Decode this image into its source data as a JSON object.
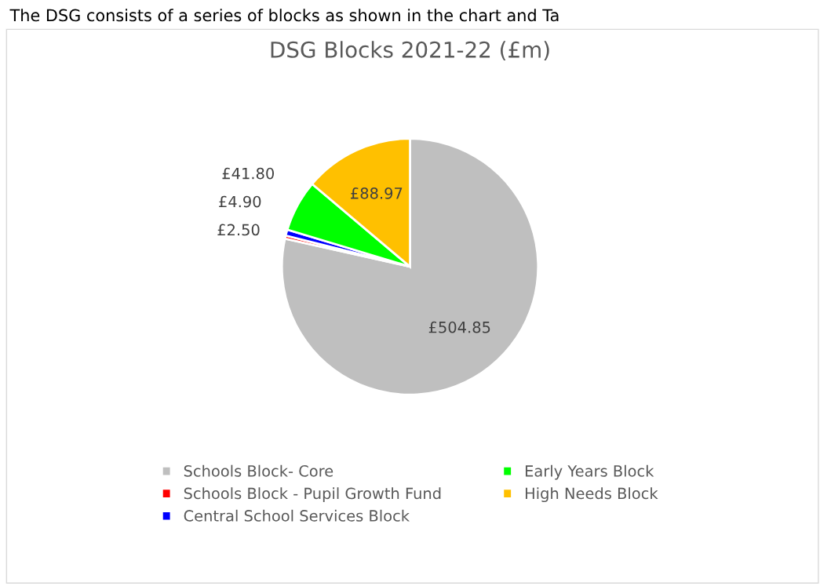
{
  "chart_data": {
    "type": "pie",
    "title": "DSG Blocks 2021-22 (£m)",
    "categories": [
      "Schools Block- Core",
      "Schools Block - Pupil Growth Fund",
      "Central School Services Block",
      "Early Years Block",
      "High Needs Block"
    ],
    "values": [
      504.85,
      2.5,
      4.9,
      41.8,
      88.97
    ],
    "colors": [
      "#bfbfbf",
      "#ff0000",
      "#0000ff",
      "#00ff00",
      "#ffc000"
    ],
    "value_labels": [
      "£504.85",
      "£2.50",
      "£4.90",
      "£41.80",
      "£88.97"
    ],
    "annotations": [
      "The DSG consists of a series of blocks as shown in the chart and Ta"
    ],
    "legend": "bottom"
  }
}
